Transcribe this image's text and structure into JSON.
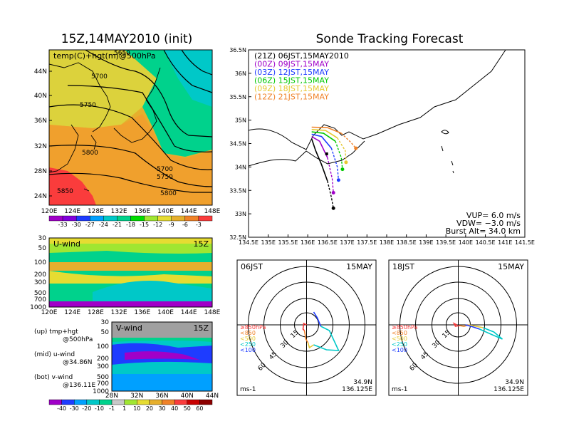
{
  "title_left": "15Z,14MAY2010 (init)",
  "title_right": "Sonde Tracking Forecast",
  "upper_panel": {
    "label": "temp(C)+hgt(m)@500hPa",
    "lat_ticks": [
      "44N",
      "40N",
      "36N",
      "32N",
      "28N",
      "24N"
    ],
    "lon_ticks": [
      "120E",
      "124E",
      "128E",
      "132E",
      "136E",
      "140E",
      "144E",
      "148E"
    ],
    "contour_labels": [
      "5650",
      "5700",
      "5750",
      "5800",
      "5700",
      "5750",
      "5800",
      "5850"
    ],
    "colorbar_labels": [
      "-33",
      "-30",
      "-27",
      "-24",
      "-21",
      "-18",
      "-15",
      "-12",
      "-9",
      "-6",
      "-3"
    ],
    "colorbar_colors": [
      "#a000c8",
      "#8200dc",
      "#1e3cff",
      "#00a0ff",
      "#00c8c8",
      "#00d28c",
      "#00dc00",
      "#a0e632",
      "#e6dc32",
      "#e6af2d",
      "#f08228",
      "#fa3c3c"
    ]
  },
  "uwind_panel": {
    "label": "U-wind",
    "time": "15Z",
    "lev_ticks": [
      "30",
      "50",
      "100",
      "200",
      "300",
      "500",
      "700",
      "1000"
    ],
    "lon_ticks": [
      "120E",
      "124E",
      "128E",
      "132E",
      "136E",
      "140E",
      "144E",
      "148E"
    ]
  },
  "vwind_panel": {
    "label": "V-wind",
    "time": "15Z",
    "lev_ticks": [
      "30",
      "50",
      "100",
      "200",
      "300",
      "500",
      "700",
      "1000"
    ],
    "lat_ticks": [
      "28N",
      "32N",
      "36N",
      "40N",
      "44N"
    ]
  },
  "legend_notes": {
    "up": "(up) tmp+hgt",
    "up2": "@500hPa",
    "mid": "(mid) u-wind",
    "mid2": "@34.86N",
    "bot": "(bot) v-wind",
    "bot2": "@136.11E"
  },
  "wind_colorbar": {
    "labels": [
      "-40",
      "-30",
      "-20",
      "-10",
      "-1",
      "1",
      "10",
      "20",
      "30",
      "40",
      "50",
      "60"
    ],
    "colors": [
      "#a000c8",
      "#1e3cff",
      "#00a0ff",
      "#00c8c8",
      "#00d28c",
      "#c8c8c8",
      "#a0e632",
      "#e6dc32",
      "#e6af2d",
      "#f08228",
      "#fa3c3c",
      "#c80000"
    ]
  },
  "track_map": {
    "lat_ticks": [
      "36.5N",
      "36N",
      "35.5N",
      "35N",
      "34.5N",
      "34N",
      "33.5N",
      "33N",
      "32.5N"
    ],
    "lon_ticks": [
      "134.5E",
      "135E",
      "135.5E",
      "136E",
      "136.5E",
      "137E",
      "137.5E",
      "138E",
      "138.5E",
      "139E",
      "139.5E",
      "140E",
      "140.5E",
      "141E",
      "141.5E"
    ],
    "legend": [
      {
        "text": "(21Z)  06JST,15MAY2010",
        "color": "#000000"
      },
      {
        "text": "(00Z)  09JST,15MAY",
        "color": "#a000c8"
      },
      {
        "text": "(03Z)  12JST,15MAY",
        "color": "#1e3cff"
      },
      {
        "text": "(06Z)  15JST,15MAY",
        "color": "#00c800"
      },
      {
        "text": "(09Z)  18JST,15MAY",
        "color": "#e6c832"
      },
      {
        "text": "(12Z)  21JST,15MAY",
        "color": "#f08228"
      }
    ],
    "vup": "VUP=  6.0  m/s",
    "vdw": "VDW= −3.0  m/s",
    "burst": "Burst Alt=  34.0  km"
  },
  "hodo_left": {
    "time": "06JST",
    "date": "15MAY",
    "rings": [
      "15",
      "30",
      "45",
      "60"
    ],
    "levels": [
      "≥850hPa",
      "<850",
      "<500",
      "<250",
      "<100"
    ],
    "level_colors": [
      "#fa3c3c",
      "#f08228",
      "#e6c832",
      "#00c8c8",
      "#1e3cff"
    ],
    "unit": "ms-1",
    "loc_lat": "34.9N",
    "loc_lon": "136.125E"
  },
  "hodo_right": {
    "time": "18JST",
    "date": "15MAY",
    "rings": [
      "15",
      "30",
      "45",
      "60"
    ],
    "levels": [
      "≥850hPa",
      "<850",
      "<500",
      "<250",
      "<100"
    ],
    "level_colors": [
      "#fa3c3c",
      "#f08228",
      "#e6c832",
      "#00c8c8",
      "#1e3cff"
    ],
    "unit": "ms-1",
    "loc_lat": "34.9N",
    "loc_lon": "136.125E"
  },
  "chart_data": {
    "type": "line",
    "title": "Sonde Tracking Forecast",
    "xlabel": "",
    "ylabel": "",
    "xlim": [
      134.5,
      141.5
    ],
    "ylim": [
      32.5,
      36.5
    ],
    "series": [
      {
        "name": "(21Z)  06JST,15MAY2010",
        "x": [
          136.1,
          136.2,
          136.35,
          136.5,
          136.6,
          136.65
        ],
        "y": [
          34.6,
          34.35,
          34.05,
          33.7,
          33.35,
          33.12
        ]
      },
      {
        "name": "(00Z)  09JST,15MAY",
        "x": [
          136.1,
          136.3,
          136.5,
          136.62,
          136.65
        ],
        "y": [
          34.65,
          34.55,
          34.2,
          33.75,
          33.45
        ]
      },
      {
        "name": "(03Z)  12JST,15MAY",
        "x": [
          136.1,
          136.35,
          136.6,
          136.75,
          136.78
        ],
        "y": [
          34.7,
          34.65,
          34.4,
          34.0,
          33.72
        ]
      },
      {
        "name": "(06Z)  15JST,15MAY",
        "x": [
          136.1,
          136.4,
          136.7,
          136.85,
          136.88
        ],
        "y": [
          34.75,
          34.72,
          34.55,
          34.2,
          33.95
        ]
      },
      {
        "name": "(09Z)  18JST,15MAY",
        "x": [
          136.1,
          136.45,
          136.75,
          136.95,
          136.97
        ],
        "y": [
          34.8,
          34.78,
          34.62,
          34.35,
          34.1
        ]
      },
      {
        "name": "(12Z)  21JST,15MAY",
        "x": [
          136.1,
          136.5,
          136.85,
          137.1,
          137.22
        ],
        "y": [
          34.85,
          34.84,
          34.72,
          34.52,
          34.4
        ]
      }
    ]
  }
}
